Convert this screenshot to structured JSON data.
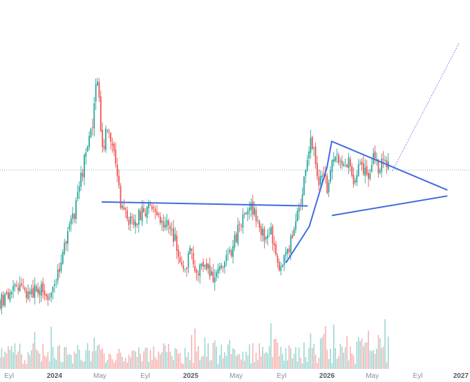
{
  "chart_data": {
    "type": "candlestick",
    "title": "",
    "xlabel": "",
    "ylabel": "",
    "colors": {
      "up": "#26a69a",
      "down": "#ef5350",
      "trendline": "#3d6ae0",
      "projection": "#3d6ae0",
      "price_line": "#26a69a",
      "axis_text": "#8a8f99"
    },
    "x_axis": {
      "range": [
        2023.6,
        2027.05
      ],
      "ticks": [
        {
          "label": "Eyl",
          "x": 2023.667,
          "bold": false
        },
        {
          "label": "2024",
          "x": 2024.0,
          "bold": true
        },
        {
          "label": "May",
          "x": 2024.333,
          "bold": false
        },
        {
          "label": "Eyl",
          "x": 2024.667,
          "bold": false
        },
        {
          "label": "2025",
          "x": 2025.0,
          "bold": true
        },
        {
          "label": "May",
          "x": 2025.333,
          "bold": false
        },
        {
          "label": "Eyl",
          "x": 2025.667,
          "bold": false
        },
        {
          "label": "2026",
          "x": 2026.0,
          "bold": true
        },
        {
          "label": "May",
          "x": 2026.333,
          "bold": false
        },
        {
          "label": "Eyl",
          "x": 2026.667,
          "bold": false
        },
        {
          "label": "2027",
          "x": 2027.0,
          "bold": true
        }
      ]
    },
    "y_axis": {
      "range": [
        0,
        100
      ],
      "scale": "linear"
    },
    "price_anchors": [
      [
        2023.6,
        11
      ],
      [
        2023.7,
        16
      ],
      [
        2023.8,
        14
      ],
      [
        2023.9,
        15
      ],
      [
        2023.97,
        13
      ],
      [
        2024.0,
        18
      ],
      [
        2024.05,
        23
      ],
      [
        2024.1,
        32
      ],
      [
        2024.15,
        38
      ],
      [
        2024.2,
        50
      ],
      [
        2024.25,
        61
      ],
      [
        2024.28,
        66
      ],
      [
        2024.3,
        78
      ],
      [
        2024.315,
        80
      ],
      [
        2024.33,
        70
      ],
      [
        2024.35,
        57
      ],
      [
        2024.38,
        63
      ],
      [
        2024.42,
        59
      ],
      [
        2024.45,
        52
      ],
      [
        2024.48,
        42
      ],
      [
        2024.52,
        38
      ],
      [
        2024.58,
        35
      ],
      [
        2024.64,
        38
      ],
      [
        2024.7,
        41
      ],
      [
        2024.76,
        36
      ],
      [
        2024.82,
        34
      ],
      [
        2024.88,
        31
      ],
      [
        2024.92,
        25
      ],
      [
        2024.96,
        21
      ],
      [
        2025.0,
        26
      ],
      [
        2025.05,
        19
      ],
      [
        2025.1,
        24
      ],
      [
        2025.16,
        18
      ],
      [
        2025.22,
        22
      ],
      [
        2025.28,
        25
      ],
      [
        2025.34,
        32
      ],
      [
        2025.4,
        37
      ],
      [
        2025.44,
        41
      ],
      [
        2025.48,
        36
      ],
      [
        2025.53,
        31
      ],
      [
        2025.58,
        33
      ],
      [
        2025.62,
        28
      ],
      [
        2025.66,
        21
      ],
      [
        2025.7,
        26
      ],
      [
        2025.74,
        30
      ],
      [
        2025.78,
        37
      ],
      [
        2025.82,
        45
      ],
      [
        2025.85,
        53
      ],
      [
        2025.88,
        60
      ],
      [
        2025.91,
        56
      ],
      [
        2025.94,
        48
      ],
      [
        2025.97,
        52
      ],
      [
        2026.0,
        46
      ],
      [
        2026.04,
        53
      ],
      [
        2026.08,
        56
      ],
      [
        2026.12,
        51
      ],
      [
        2026.16,
        55
      ],
      [
        2026.2,
        48
      ],
      [
        2026.25,
        53
      ],
      [
        2026.3,
        49
      ],
      [
        2026.34,
        55
      ],
      [
        2026.38,
        51
      ],
      [
        2026.42,
        54
      ],
      [
        2026.45,
        52
      ]
    ],
    "volume_profile": {
      "min": 5,
      "max": 45,
      "scale_max": 100
    },
    "trendlines": [
      {
        "from": [
          2024.35,
          41.5
        ],
        "to": [
          2025.855,
          40.3
        ],
        "style": "solid"
      },
      {
        "from": [
          2025.7,
          23.0
        ],
        "to": [
          2025.87,
          34.0
        ],
        "style": "solid"
      },
      {
        "from": [
          2025.87,
          34.0
        ],
        "to": [
          2026.0,
          52.0
        ],
        "style": "solid"
      },
      {
        "from": [
          2026.0,
          52.0
        ],
        "to": [
          2026.035,
          60.0
        ],
        "style": "solid"
      },
      {
        "from": [
          2026.035,
          60.0
        ],
        "to": [
          2026.88,
          45.2
        ],
        "style": "solid"
      },
      {
        "from": [
          2026.04,
          37.4
        ],
        "to": [
          2026.88,
          43.3
        ],
        "style": "solid"
      },
      {
        "from": [
          2026.48,
          51.0
        ],
        "to": [
          2026.97,
          90.0
        ],
        "style": "dotted"
      }
    ],
    "price_line": {
      "y": 51.2
    }
  }
}
